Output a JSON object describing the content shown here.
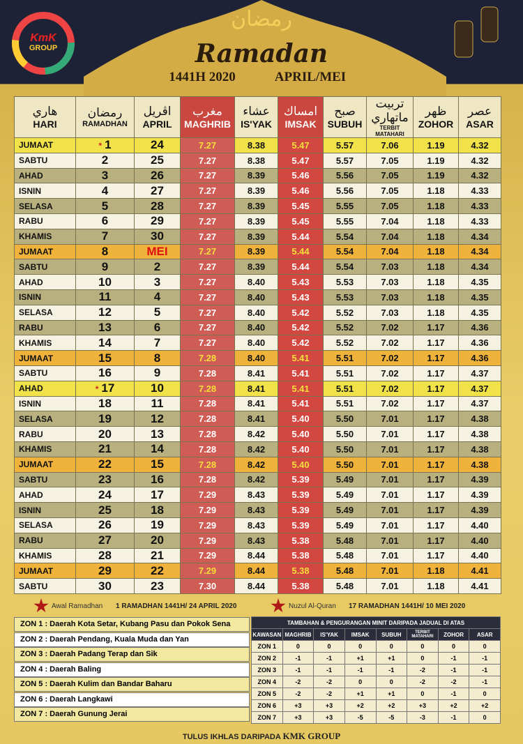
{
  "header": {
    "logo": "KmK",
    "logo_sub": "GROUP",
    "arabic_title": "رمضان",
    "title": "Ramadan",
    "year": "1441H 2020",
    "months": "APRIL/MEI"
  },
  "table": {
    "headers": [
      {
        "arabic": "هاري",
        "label": "HARI"
      },
      {
        "arabic": "رمضان",
        "label": "RAMADHAN"
      },
      {
        "arabic": "اڤريل",
        "label": "APRIL"
      },
      {
        "arabic": "مغرب",
        "label": "MAGHRIB"
      },
      {
        "arabic": "عشاء",
        "label": "IS'YAK"
      },
      {
        "arabic": "امساك",
        "label": "IMSAK"
      },
      {
        "arabic": "صبح",
        "label": "SUBUH"
      },
      {
        "arabic": "تربيت ماتهاري",
        "label": "TERBIT MATAHARI"
      },
      {
        "arabic": "ظهر",
        "label": "ZOHOR"
      },
      {
        "arabic": "عصر",
        "label": "ASAR"
      }
    ],
    "rows": [
      [
        "JUMAAT",
        "1",
        "24",
        "7.27",
        "8.38",
        "5.47",
        "5.57",
        "7.06",
        "1.19",
        "4.32"
      ],
      [
        "SABTU",
        "2",
        "25",
        "7.27",
        "8.38",
        "5.47",
        "5.57",
        "7.05",
        "1.19",
        "4.32"
      ],
      [
        "AHAD",
        "3",
        "26",
        "7.27",
        "8.39",
        "5.46",
        "5.56",
        "7.05",
        "1.19",
        "4.32"
      ],
      [
        "ISNIN",
        "4",
        "27",
        "7.27",
        "8.39",
        "5.46",
        "5.56",
        "7.05",
        "1.18",
        "4.33"
      ],
      [
        "SELASA",
        "5",
        "28",
        "7.27",
        "8.39",
        "5.45",
        "5.55",
        "7.05",
        "1.18",
        "4.33"
      ],
      [
        "RABU",
        "6",
        "29",
        "7.27",
        "8.39",
        "5.45",
        "5.55",
        "7.04",
        "1.18",
        "4.33"
      ],
      [
        "KHAMIS",
        "7",
        "30",
        "7.27",
        "8.39",
        "5.44",
        "5.54",
        "7.04",
        "1.18",
        "4.34"
      ],
      [
        "JUMAAT",
        "8",
        "MEI",
        "7.27",
        "8.39",
        "5.44",
        "5.54",
        "7.04",
        "1.18",
        "4.34"
      ],
      [
        "SABTU",
        "9",
        "2",
        "7.27",
        "8.39",
        "5.44",
        "5.54",
        "7.03",
        "1.18",
        "4.34"
      ],
      [
        "AHAD",
        "10",
        "3",
        "7.27",
        "8.40",
        "5.43",
        "5.53",
        "7.03",
        "1.18",
        "4.35"
      ],
      [
        "ISNIN",
        "11",
        "4",
        "7.27",
        "8.40",
        "5.43",
        "5.53",
        "7.03",
        "1.18",
        "4.35"
      ],
      [
        "SELASA",
        "12",
        "5",
        "7.27",
        "8.40",
        "5.42",
        "5.52",
        "7.03",
        "1.18",
        "4.35"
      ],
      [
        "RABU",
        "13",
        "6",
        "7.27",
        "8.40",
        "5.42",
        "5.52",
        "7.02",
        "1.17",
        "4.36"
      ],
      [
        "KHAMIS",
        "14",
        "7",
        "7.27",
        "8.40",
        "5.42",
        "5.52",
        "7.02",
        "1.17",
        "4.36"
      ],
      [
        "JUMAAT",
        "15",
        "8",
        "7.28",
        "8.40",
        "5.41",
        "5.51",
        "7.02",
        "1.17",
        "4.36"
      ],
      [
        "SABTU",
        "16",
        "9",
        "7.28",
        "8.41",
        "5.41",
        "5.51",
        "7.02",
        "1.17",
        "4.37"
      ],
      [
        "AHAD",
        "17",
        "10",
        "7.28",
        "8.41",
        "5.41",
        "5.51",
        "7.02",
        "1.17",
        "4.37"
      ],
      [
        "ISNIN",
        "18",
        "11",
        "7.28",
        "8.41",
        "5.41",
        "5.51",
        "7.02",
        "1.17",
        "4.37"
      ],
      [
        "SELASA",
        "19",
        "12",
        "7.28",
        "8.41",
        "5.40",
        "5.50",
        "7.01",
        "1.17",
        "4.38"
      ],
      [
        "RABU",
        "20",
        "13",
        "7.28",
        "8.42",
        "5.40",
        "5.50",
        "7.01",
        "1.17",
        "4.38"
      ],
      [
        "KHAMIS",
        "21",
        "14",
        "7.28",
        "8.42",
        "5.40",
        "5.50",
        "7.01",
        "1.17",
        "4.38"
      ],
      [
        "JUMAAT",
        "22",
        "15",
        "7.28",
        "8.42",
        "5.40",
        "5.50",
        "7.01",
        "1.17",
        "4.38"
      ],
      [
        "SABTU",
        "23",
        "16",
        "7.28",
        "8.42",
        "5.39",
        "5.49",
        "7.01",
        "1.17",
        "4.39"
      ],
      [
        "AHAD",
        "24",
        "17",
        "7.29",
        "8.43",
        "5.39",
        "5.49",
        "7.01",
        "1.17",
        "4.39"
      ],
      [
        "ISNIN",
        "25",
        "18",
        "7.29",
        "8.43",
        "5.39",
        "5.49",
        "7.01",
        "1.17",
        "4.39"
      ],
      [
        "SELASA",
        "26",
        "19",
        "7.29",
        "8.43",
        "5.39",
        "5.49",
        "7.01",
        "1.17",
        "4.40"
      ],
      [
        "RABU",
        "27",
        "20",
        "7.29",
        "8.43",
        "5.38",
        "5.48",
        "7.01",
        "1.17",
        "4.40"
      ],
      [
        "KHAMIS",
        "28",
        "21",
        "7.29",
        "8.44",
        "5.38",
        "5.48",
        "7.01",
        "1.17",
        "4.40"
      ],
      [
        "JUMAAT",
        "29",
        "22",
        "7.29",
        "8.44",
        "5.38",
        "5.48",
        "7.01",
        "1.18",
        "4.41"
      ],
      [
        "SABTU",
        "30",
        "23",
        "7.30",
        "8.44",
        "5.38",
        "5.48",
        "7.01",
        "1.18",
        "4.41"
      ]
    ]
  },
  "notes": [
    {
      "label": "Awal Ramadhan",
      "text": "1 RAMADHAN 1441H/ 24 APRIL 2020"
    },
    {
      "label": "Nuzul Al-Quran",
      "text": "17 RAMADHAN 1441H/ 10 MEI 2020"
    }
  ],
  "zones": [
    "ZON 1 : Daerah Kota Setar, Kubang Pasu dan Pokok Sena",
    "ZON 2 : Daerah Pendang, Kuala Muda dan Yan",
    "ZON 3 : Daerah Padang Terap dan Sik",
    "ZON 4 : Daerah Baling",
    "ZON 5 : Daerah Kulim dan Bandar Baharu",
    "ZON 6 : Daerah Langkawi",
    "ZON 7 : Daerah Gunung Jerai"
  ],
  "adjustments": {
    "title": "TAMBAHAN & PENGURANGAN MINIT DARIPADA JADUAL DI ATAS",
    "headers": [
      "KAWASAN",
      "MAGHRIB",
      "IS'YAK",
      "IMSAK",
      "SUBUH",
      "TERBIT MATAHARI",
      "ZOHOR",
      "ASAR"
    ],
    "rows": [
      [
        "ZON 1",
        "0",
        "0",
        "0",
        "0",
        "0",
        "0",
        "0"
      ],
      [
        "ZON 2",
        "-1",
        "-1",
        "+1",
        "+1",
        "0",
        "-1",
        "-1"
      ],
      [
        "ZON 3",
        "-1",
        "-1",
        "-1",
        "-1",
        "-2",
        "-1",
        "-1"
      ],
      [
        "ZON 4",
        "-2",
        "-2",
        "0",
        "0",
        "-2",
        "-2",
        "-1"
      ],
      [
        "ZON 5",
        "-2",
        "-2",
        "+1",
        "+1",
        "0",
        "-1",
        "0"
      ],
      [
        "ZON 6",
        "+3",
        "+3",
        "+2",
        "+2",
        "+3",
        "+2",
        "+2"
      ],
      [
        "ZON 7",
        "+3",
        "+3",
        "-5",
        "-5",
        "-3",
        "-1",
        "0"
      ]
    ]
  },
  "footer": {
    "text": "TULUS IKHLAS DARIPADA",
    "brand": "KMK GROUP"
  }
}
